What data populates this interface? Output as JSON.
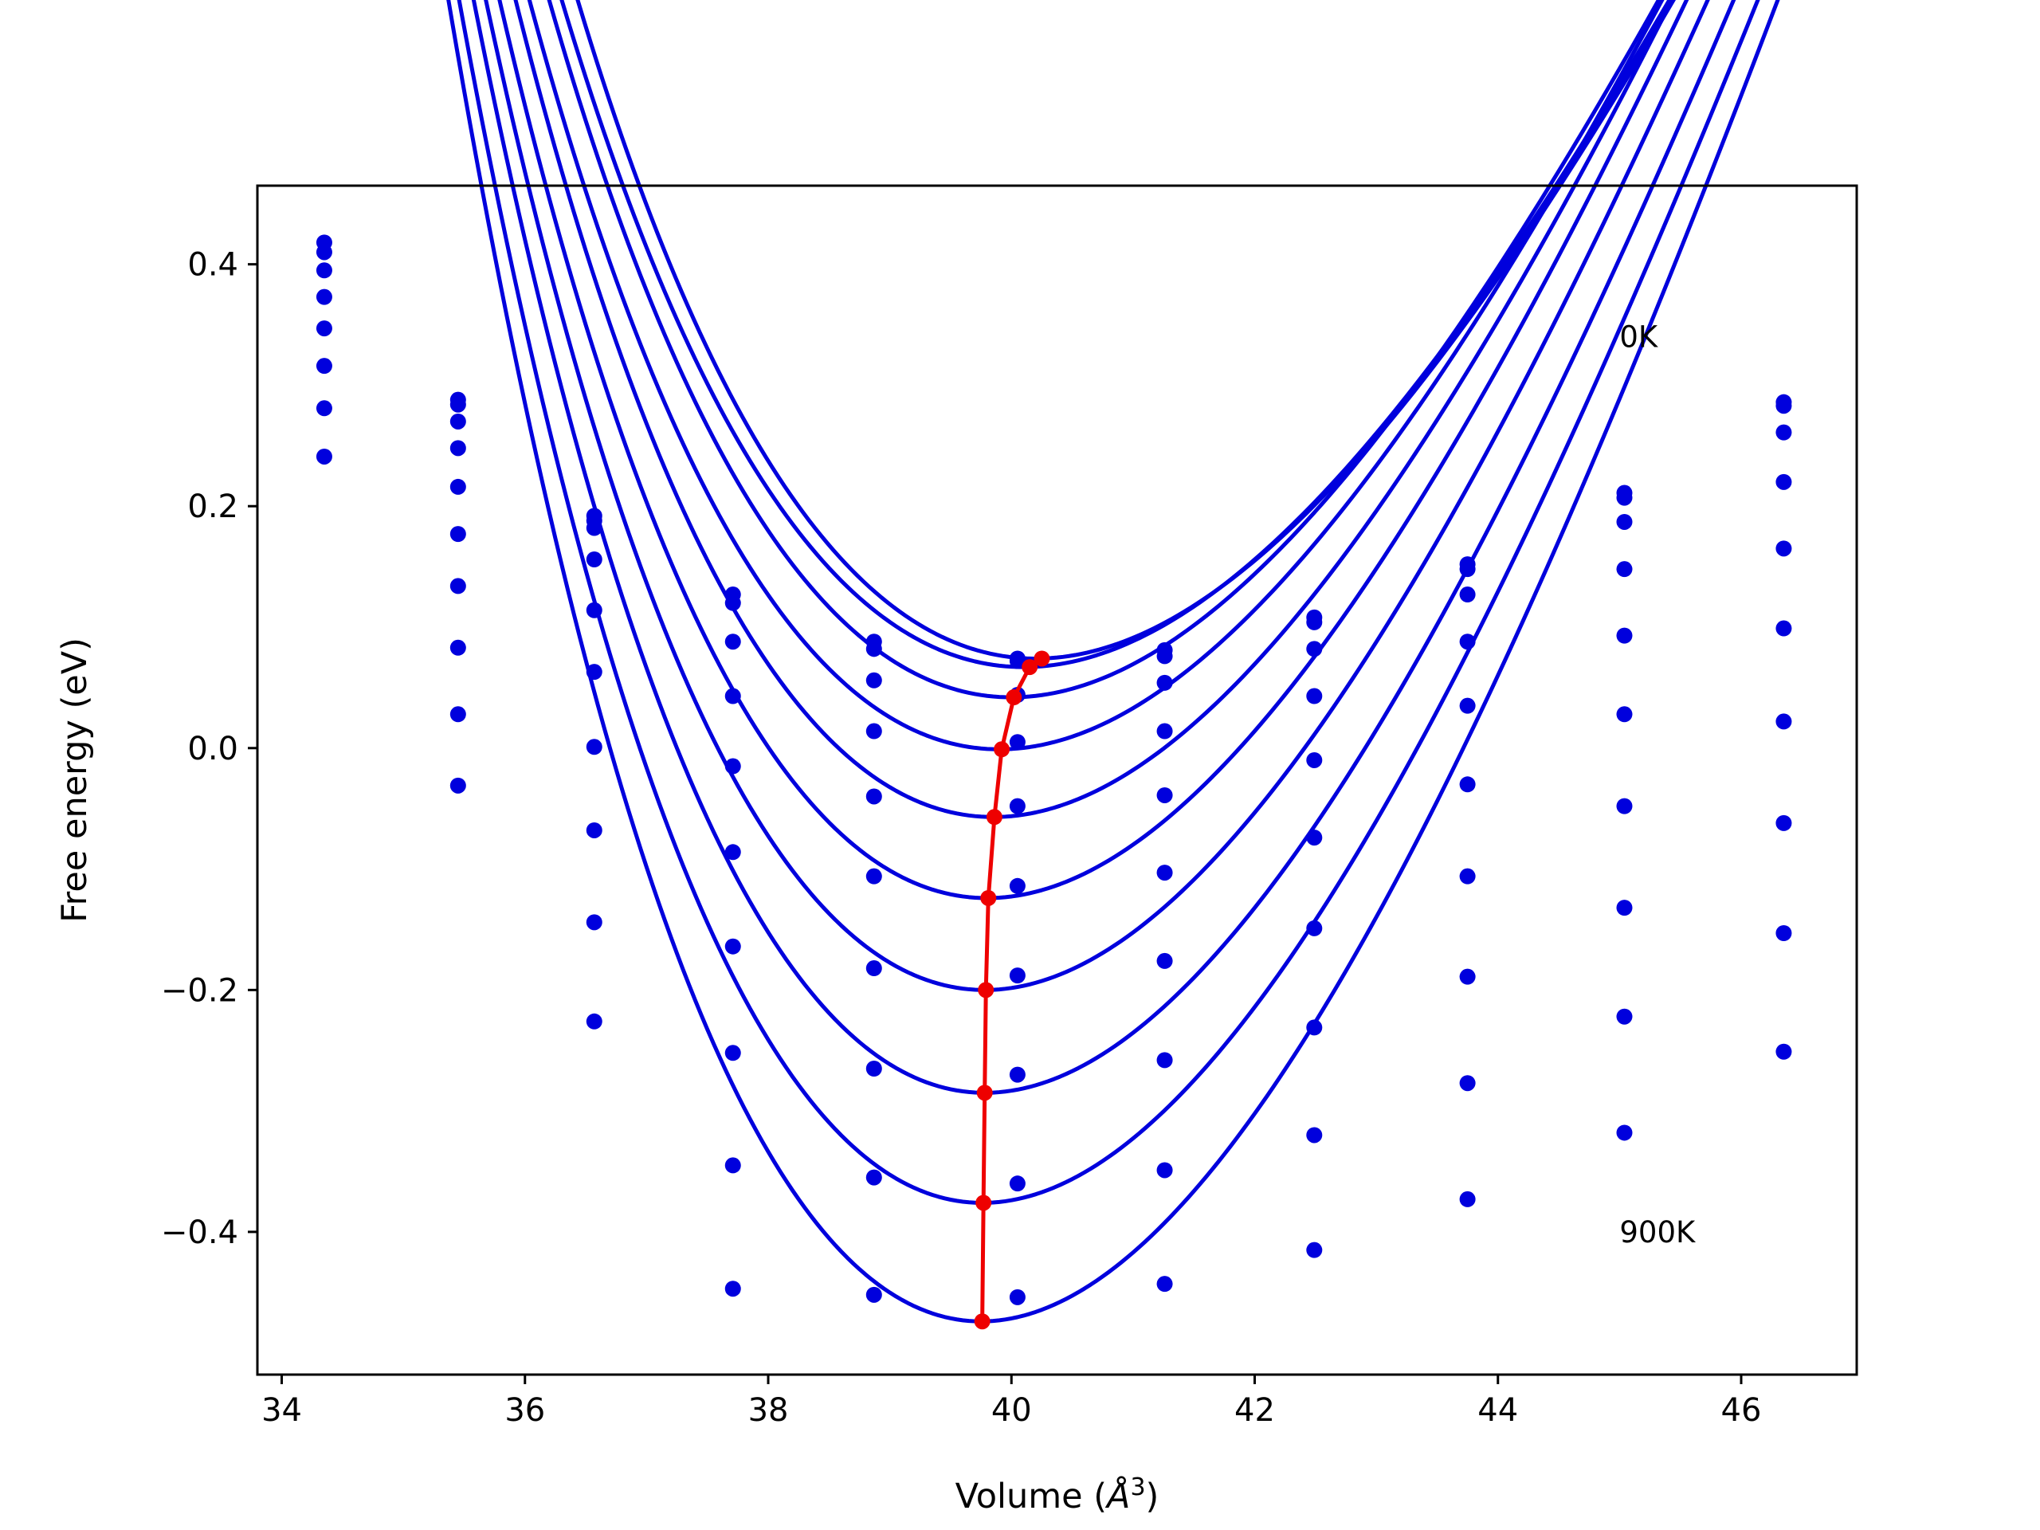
{
  "chart_data": {
    "type": "line",
    "title": "",
    "xlabel": "Volume (",
    "xlabel_unit": "Å",
    "xlabel_exp": "3",
    "xlabel_close": ")",
    "ylabel": "Free energy (eV)",
    "xlim": [
      33.8,
      46.95
    ],
    "ylim": [
      -0.518,
      0.465
    ],
    "xticks": [
      34,
      36,
      38,
      40,
      42,
      44,
      46
    ],
    "xtick_labels": [
      "34",
      "36",
      "38",
      "40",
      "42",
      "44",
      "46"
    ],
    "yticks": [
      -0.4,
      -0.2,
      0.0,
      0.2,
      0.4
    ],
    "ytick_labels": [
      "−0.4",
      "−0.2",
      "0.0",
      "0.2",
      "0.4"
    ],
    "grid": false,
    "annotations": [
      {
        "text": "0K",
        "x": 45.0,
        "y": 0.34
      },
      {
        "text": "900K",
        "x": 45.0,
        "y": -0.4
      }
    ],
    "x": [
      34.35,
      35.45,
      36.57,
      37.71,
      38.87,
      40.05,
      41.26,
      42.49,
      43.75,
      45.04,
      46.35
    ],
    "series": [
      {
        "values": [
          0.418,
          0.288,
          0.192,
          0.127,
          0.088,
          0.074,
          0.081,
          0.108,
          0.152,
          0.211,
          0.286
        ]
      },
      {
        "values": [
          0.41,
          0.284,
          0.188,
          0.12,
          0.082,
          0.072,
          0.076,
          0.104,
          0.148,
          0.207,
          0.283
        ]
      },
      {
        "values": [
          0.395,
          0.27,
          0.182,
          0.088,
          0.056,
          0.044,
          0.054,
          0.082,
          0.127,
          0.187,
          0.261
        ]
      },
      {
        "values": [
          0.373,
          0.248,
          0.156,
          0.043,
          0.014,
          0.005,
          0.014,
          0.043,
          0.088,
          0.148,
          0.22
        ]
      },
      {
        "values": [
          0.347,
          0.216,
          0.114,
          -0.015,
          -0.04,
          -0.048,
          -0.039,
          -0.01,
          0.035,
          0.093,
          0.165
        ]
      },
      {
        "values": [
          0.316,
          0.177,
          0.063,
          -0.086,
          -0.106,
          -0.114,
          -0.103,
          -0.074,
          -0.03,
          0.028,
          0.099
        ]
      },
      {
        "values": [
          0.281,
          0.134,
          0.001,
          -0.164,
          -0.182,
          -0.188,
          -0.176,
          -0.149,
          -0.106,
          -0.048,
          0.022
        ]
      },
      {
        "values": [
          0.241,
          0.083,
          -0.068,
          -0.252,
          -0.265,
          -0.27,
          -0.258,
          -0.231,
          -0.189,
          -0.132,
          -0.062
        ]
      },
      {
        "values": [
          null,
          0.028,
          -0.144,
          -0.345,
          -0.355,
          -0.36,
          -0.349,
          -0.32,
          -0.277,
          -0.222,
          -0.153
        ]
      },
      {
        "values": [
          null,
          -0.031,
          -0.226,
          -0.447,
          -0.452,
          -0.454,
          -0.443,
          -0.415,
          -0.373,
          -0.318,
          -0.251
        ]
      }
    ],
    "fits": [
      {
        "x0": 40.2,
        "y0": 0.074,
        "k": 0.0285,
        "start_x": 34.4,
        "end_x": 46.35
      },
      {
        "x0": 40.1,
        "y0": 0.067,
        "k": 0.0283,
        "start_x": 34.35,
        "end_x": 46.35
      },
      {
        "x0": 40.0,
        "y0": 0.042,
        "k": 0.0295,
        "start_x": 34.35,
        "end_x": 46.35
      },
      {
        "x0": 39.9,
        "y0": -0.001,
        "k": 0.0305,
        "start_x": 34.35,
        "end_x": 46.35
      },
      {
        "x0": 39.85,
        "y0": -0.057,
        "k": 0.032,
        "start_x": 34.35,
        "end_x": 46.35
      },
      {
        "x0": 39.8,
        "y0": -0.124,
        "k": 0.0335,
        "start_x": 34.35,
        "end_x": 46.35
      },
      {
        "x0": 39.78,
        "y0": -0.2,
        "k": 0.035,
        "start_x": 34.35,
        "end_x": 46.35
      },
      {
        "x0": 39.78,
        "y0": -0.285,
        "k": 0.0365,
        "start_x": 34.35,
        "end_x": 46.35
      },
      {
        "x0": 39.76,
        "y0": -0.376,
        "k": 0.038,
        "start_x": 34.35,
        "end_x": 46.35
      },
      {
        "x0": 39.75,
        "y0": -0.474,
        "k": 0.04,
        "start_x": 34.35,
        "end_x": 46.35
      }
    ],
    "minima": {
      "x": [
        40.25,
        40.15,
        40.02,
        39.92,
        39.86,
        39.81,
        39.79,
        39.78,
        39.77,
        39.76
      ],
      "y": [
        0.074,
        0.067,
        0.042,
        -0.001,
        -0.057,
        -0.124,
        -0.2,
        -0.285,
        -0.376,
        -0.474
      ]
    },
    "colors": {
      "series": "#0000dd",
      "minima": "#ee0000",
      "axes": "#000000"
    }
  }
}
